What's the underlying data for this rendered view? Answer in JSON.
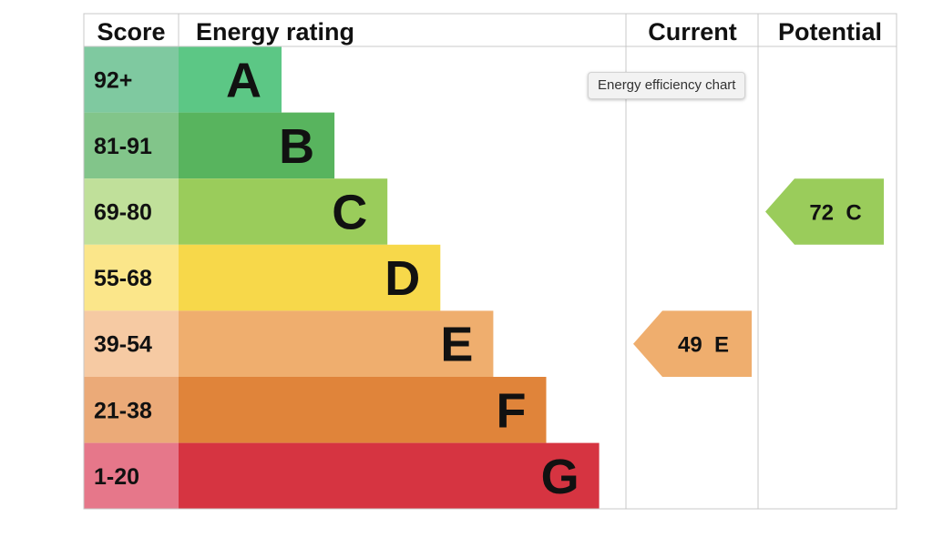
{
  "chart_data": {
    "type": "table",
    "headers": {
      "score": "Score",
      "rating": "Energy rating",
      "current": "Current",
      "potential": "Potential"
    },
    "bands": [
      {
        "letter": "A",
        "range": "92+",
        "color": "#5cc785",
        "score_color": "#7fc9a0"
      },
      {
        "letter": "B",
        "range": "81-91",
        "color": "#58b45e",
        "score_color": "#82c58a"
      },
      {
        "letter": "C",
        "range": "69-80",
        "color": "#9acc5b",
        "score_color": "#c0e09a"
      },
      {
        "letter": "D",
        "range": "55-68",
        "color": "#f7d84a",
        "score_color": "#fbe68a"
      },
      {
        "letter": "E",
        "range": "39-54",
        "color": "#efae6e",
        "score_color": "#f6caa3"
      },
      {
        "letter": "F",
        "range": "21-38",
        "color": "#e0843a",
        "score_color": "#ebaa78"
      },
      {
        "letter": "G",
        "range": "1-20",
        "color": "#d63441",
        "score_color": "#e6778a"
      }
    ],
    "current": {
      "label": "49 E",
      "value": 49,
      "band": "E"
    },
    "potential": {
      "label": "72 C",
      "value": 72,
      "band": "C"
    }
  },
  "tooltip": "Energy efficiency chart"
}
